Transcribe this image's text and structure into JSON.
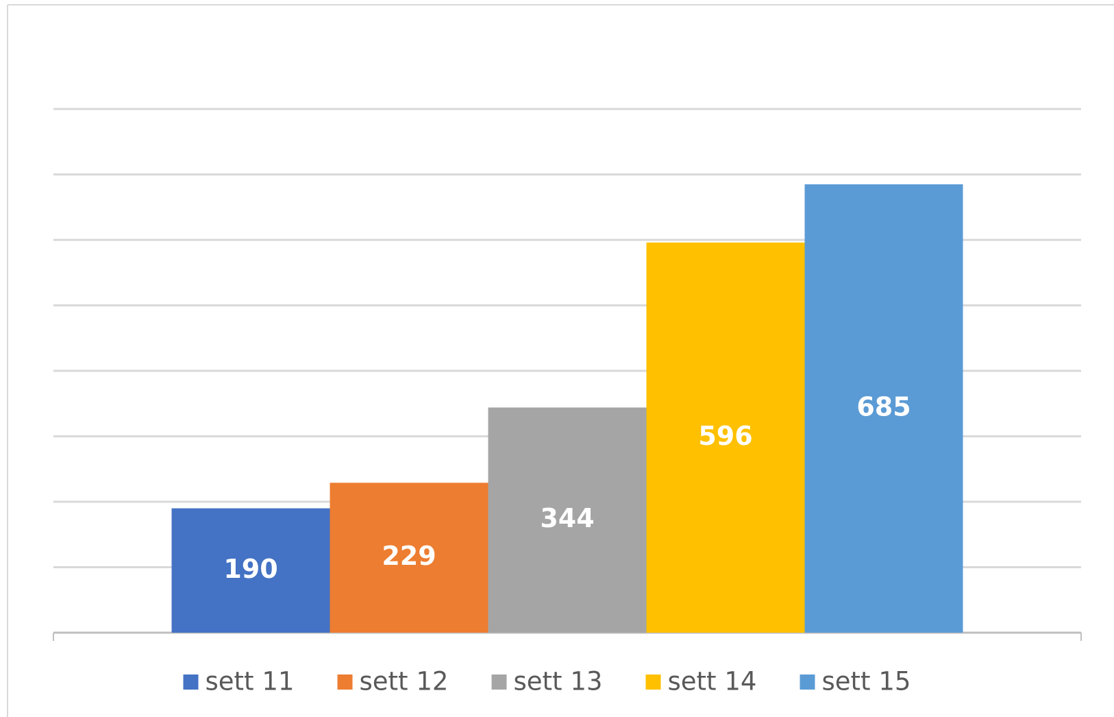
{
  "chart_data": {
    "type": "bar",
    "categories": [
      null
    ],
    "series": [
      {
        "name": "sett 11",
        "color": "#4472c4",
        "values": [
          190
        ]
      },
      {
        "name": "sett 12",
        "color": "#ed7d31",
        "values": [
          229
        ]
      },
      {
        "name": "sett 13",
        "color": "#a5a5a5",
        "values": [
          344
        ]
      },
      {
        "name": "sett 14",
        "color": "#ffc000",
        "values": [
          596
        ]
      },
      {
        "name": "sett 15",
        "color": "#5b9bd5",
        "values": [
          685
        ]
      }
    ],
    "ylim": [
      0,
      800
    ],
    "yticks": [
      0,
      100,
      200,
      300,
      400,
      500,
      600,
      700,
      800
    ],
    "grid": true,
    "legend": "bottom"
  }
}
